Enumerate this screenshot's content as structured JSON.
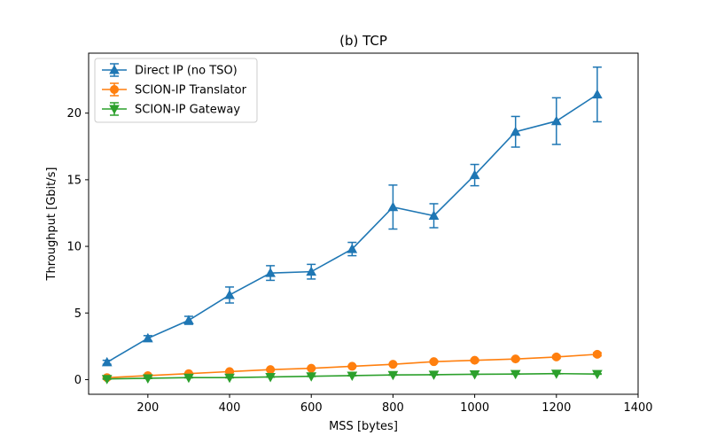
{
  "chart_data": {
    "type": "line",
    "title": "(b) TCP",
    "xlabel": "MSS [bytes]",
    "ylabel": "Throughput [Gbit/s]",
    "xlim": [
      55,
      1400
    ],
    "ylim": [
      -1.1,
      24.5
    ],
    "xticks": [
      200,
      400,
      600,
      800,
      1000,
      1200,
      1400
    ],
    "yticks": [
      0,
      5,
      10,
      15,
      20
    ],
    "grid": false,
    "legend_position": "top-left",
    "x": [
      100,
      200,
      300,
      400,
      500,
      600,
      700,
      800,
      900,
      1000,
      1100,
      1200,
      1300
    ],
    "series": [
      {
        "name": "Direct IP (no TSO)",
        "color": "#1f77b4",
        "marker": "triangle-up",
        "values": [
          1.3,
          3.1,
          4.45,
          6.35,
          8.0,
          8.1,
          9.8,
          12.95,
          12.3,
          15.35,
          18.6,
          19.4,
          21.4
        ],
        "err": [
          0.15,
          0.2,
          0.3,
          0.6,
          0.55,
          0.55,
          0.5,
          1.65,
          0.9,
          0.8,
          1.15,
          1.75,
          2.05
        ]
      },
      {
        "name": "SCION-IP Translator",
        "color": "#ff7f0e",
        "marker": "circle",
        "values": [
          0.15,
          0.3,
          0.45,
          0.6,
          0.75,
          0.85,
          1.0,
          1.15,
          1.35,
          1.45,
          1.55,
          1.7,
          1.9
        ],
        "err": [
          0.05,
          0.05,
          0.05,
          0.05,
          0.05,
          0.05,
          0.05,
          0.05,
          0.08,
          0.08,
          0.08,
          0.1,
          0.12
        ]
      },
      {
        "name": "SCION-IP Gateway",
        "color": "#2ca02c",
        "marker": "triangle-down",
        "values": [
          0.05,
          0.1,
          0.15,
          0.15,
          0.2,
          0.25,
          0.3,
          0.35,
          0.37,
          0.4,
          0.42,
          0.45,
          0.42
        ],
        "err": [
          0.02,
          0.02,
          0.02,
          0.02,
          0.02,
          0.02,
          0.02,
          0.02,
          0.02,
          0.02,
          0.02,
          0.02,
          0.02
        ]
      }
    ]
  }
}
